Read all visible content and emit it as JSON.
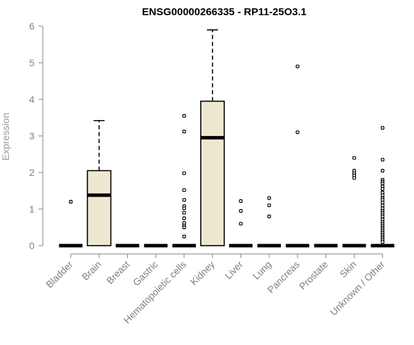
{
  "chart_data": {
    "type": "boxplot",
    "title": "ENSG00000266335 - RP11-25O3.1",
    "ylabel": "Expression",
    "xlabel": "",
    "ylim": [
      0,
      6
    ],
    "yticks": [
      0,
      1,
      2,
      3,
      4,
      5,
      6
    ],
    "box_color": "#EEE8D0",
    "line_color": "#000000",
    "axis_color": "#808080",
    "categories": [
      "Bladder",
      "Brain",
      "Breast",
      "Gastric",
      "Hematopoietic cells",
      "Kidney",
      "Liver",
      "Lung",
      "Pancreas",
      "Prostate",
      "Skin",
      "Unknown / Other"
    ],
    "boxes": [
      {
        "category": "Bladder",
        "q1": 0,
        "median": 0,
        "q3": 0,
        "whisker_low": 0,
        "whisker_high": 0,
        "outliers": [
          1.2
        ]
      },
      {
        "category": "Brain",
        "q1": 0,
        "median": 1.38,
        "q3": 2.05,
        "whisker_low": 0,
        "whisker_high": 3.42,
        "outliers": []
      },
      {
        "category": "Breast",
        "q1": 0,
        "median": 0,
        "q3": 0,
        "whisker_low": 0,
        "whisker_high": 0,
        "outliers": []
      },
      {
        "category": "Gastric",
        "q1": 0,
        "median": 0,
        "q3": 0,
        "whisker_low": 0,
        "whisker_high": 0,
        "outliers": []
      },
      {
        "category": "Hematopoietic cells",
        "q1": 0,
        "median": 0,
        "q3": 0,
        "whisker_low": 0,
        "whisker_high": 0,
        "outliers": [
          3.55,
          3.12,
          1.98,
          1.52,
          1.25,
          1.08,
          1.02,
          0.9,
          0.75,
          0.62,
          0.55,
          0.5,
          0.25
        ]
      },
      {
        "category": "Kidney",
        "q1": 0,
        "median": 2.95,
        "q3": 3.95,
        "whisker_low": 0,
        "whisker_high": 5.9,
        "outliers": []
      },
      {
        "category": "Liver",
        "q1": 0,
        "median": 0,
        "q3": 0,
        "whisker_low": 0,
        "whisker_high": 0,
        "outliers": [
          1.22,
          0.95,
          0.6
        ]
      },
      {
        "category": "Lung",
        "q1": 0,
        "median": 0,
        "q3": 0,
        "whisker_low": 0,
        "whisker_high": 0,
        "outliers": [
          1.3,
          1.1,
          0.8
        ]
      },
      {
        "category": "Pancreas",
        "q1": 0,
        "median": 0,
        "q3": 0,
        "whisker_low": 0,
        "whisker_high": 0,
        "outliers": [
          4.9,
          3.1
        ]
      },
      {
        "category": "Prostate",
        "q1": 0,
        "median": 0,
        "q3": 0,
        "whisker_low": 0,
        "whisker_high": 0,
        "outliers": []
      },
      {
        "category": "Skin",
        "q1": 0,
        "median": 0,
        "q3": 0,
        "whisker_low": 0,
        "whisker_high": 0,
        "outliers": [
          2.4,
          2.05,
          1.98,
          1.92,
          1.85
        ]
      },
      {
        "category": "Unknown / Other",
        "q1": 0,
        "median": 0,
        "q3": 0,
        "whisker_low": 0,
        "whisker_high": 0,
        "outliers": [
          3.22,
          2.35,
          2.05,
          1.8,
          1.75,
          1.7,
          1.62,
          1.55,
          1.45,
          1.38,
          1.3,
          1.25,
          1.18,
          1.1,
          1.02,
          0.95,
          0.9,
          0.85,
          0.8,
          0.72,
          0.65,
          0.6,
          0.55,
          0.5,
          0.45,
          0.4,
          0.35,
          0.3,
          0.25,
          0.2,
          0.15,
          0.1
        ]
      }
    ]
  }
}
